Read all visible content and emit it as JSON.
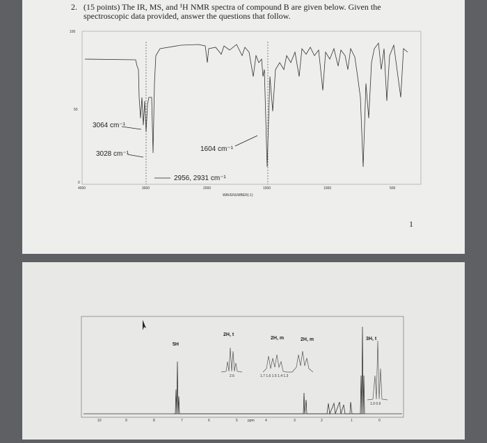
{
  "question": {
    "number": "2.",
    "text_line1": "(15 points) The IR, MS, and ¹H NMR spectra of compound B are given below.  Given the",
    "text_line2": "spectroscopic data provided, answer the questions that follow."
  },
  "ir": {
    "yticks": [
      "100",
      "50",
      "0"
    ],
    "xticks": [
      "4000",
      "3000",
      "2000",
      "1500",
      "1000",
      "500"
    ],
    "xlabel": "WAVENUMBER(-1)",
    "annotations": [
      "3064 cm⁻¹",
      "3028 cm⁻¹",
      "1604 cm⁻¹",
      "2956, 2931 cm⁻¹"
    ]
  },
  "page_number": "1",
  "nmr": {
    "xticks": [
      "10",
      "9",
      "8",
      "7",
      "6",
      "5",
      "4",
      "3",
      "2",
      "1",
      "0"
    ],
    "xlabel": "ppm",
    "peak_labels": [
      "5H",
      "2H, t",
      "2H, m",
      "2H, m",
      "3H, t"
    ],
    "inset_labels": [
      "2.6",
      "1.7  1.6  1.5  1.4  1.3",
      "1.0  0.9"
    ]
  }
}
